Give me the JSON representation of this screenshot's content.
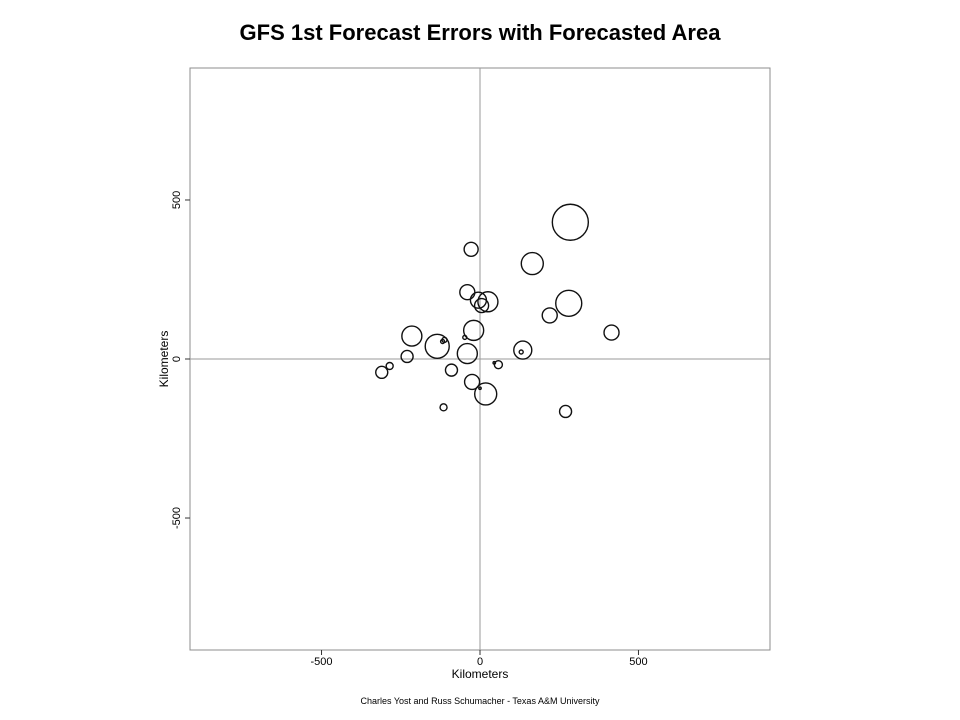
{
  "chart_data": {
    "type": "scatter",
    "title": "GFS 1st Forecast Errors with Forecasted Area",
    "xlabel": "Kilometers",
    "ylabel": "Kilometers",
    "xlim": [
      -915,
      915
    ],
    "ylim": [
      -915,
      915
    ],
    "x_ticks": [
      -500,
      0,
      500
    ],
    "y_ticks": [
      500,
      0,
      -500
    ],
    "x_tick_labels": [
      "-500",
      "0",
      "500"
    ],
    "y_tick_labels": [
      "500",
      "0",
      "-500"
    ],
    "zero_lines": true,
    "grid": false,
    "marker_size_meaning": "forecasted area (relative)",
    "points": [
      {
        "x": 285,
        "y": 430,
        "size": 18
      },
      {
        "x": 165,
        "y": 300,
        "size": 11
      },
      {
        "x": 280,
        "y": 175,
        "size": 13
      },
      {
        "x": -28,
        "y": 345,
        "size": 7
      },
      {
        "x": -40,
        "y": 210,
        "size": 7.5
      },
      {
        "x": -5,
        "y": 185,
        "size": 8
      },
      {
        "x": 5,
        "y": 168,
        "size": 7
      },
      {
        "x": 25,
        "y": 180,
        "size": 10
      },
      {
        "x": 220,
        "y": 137,
        "size": 7.5
      },
      {
        "x": 415,
        "y": 83,
        "size": 7.5
      },
      {
        "x": -20,
        "y": 90,
        "size": 10
      },
      {
        "x": -48,
        "y": 68,
        "size": 2
      },
      {
        "x": -118,
        "y": 55,
        "size": 2
      },
      {
        "x": -112,
        "y": 60,
        "size": 2.5
      },
      {
        "x": -215,
        "y": 72,
        "size": 10
      },
      {
        "x": -135,
        "y": 40,
        "size": 12
      },
      {
        "x": -40,
        "y": 17,
        "size": 10
      },
      {
        "x": -230,
        "y": 8,
        "size": 6
      },
      {
        "x": -285,
        "y": -22,
        "size": 3.5
      },
      {
        "x": -310,
        "y": -42,
        "size": 6
      },
      {
        "x": -90,
        "y": -35,
        "size": 6
      },
      {
        "x": 135,
        "y": 28,
        "size": 9
      },
      {
        "x": 130,
        "y": 22,
        "size": 2
      },
      {
        "x": 58,
        "y": -18,
        "size": 4
      },
      {
        "x": 45,
        "y": -12,
        "size": 1.2
      },
      {
        "x": -25,
        "y": -72,
        "size": 7.5
      },
      {
        "x": 0,
        "y": -92,
        "size": 1.2
      },
      {
        "x": 18,
        "y": -110,
        "size": 11
      },
      {
        "x": 270,
        "y": -165,
        "size": 6
      },
      {
        "x": -115,
        "y": -152,
        "size": 3.5
      }
    ]
  },
  "credit": "Charles Yost and Russ Schumacher - Texas A&M University"
}
